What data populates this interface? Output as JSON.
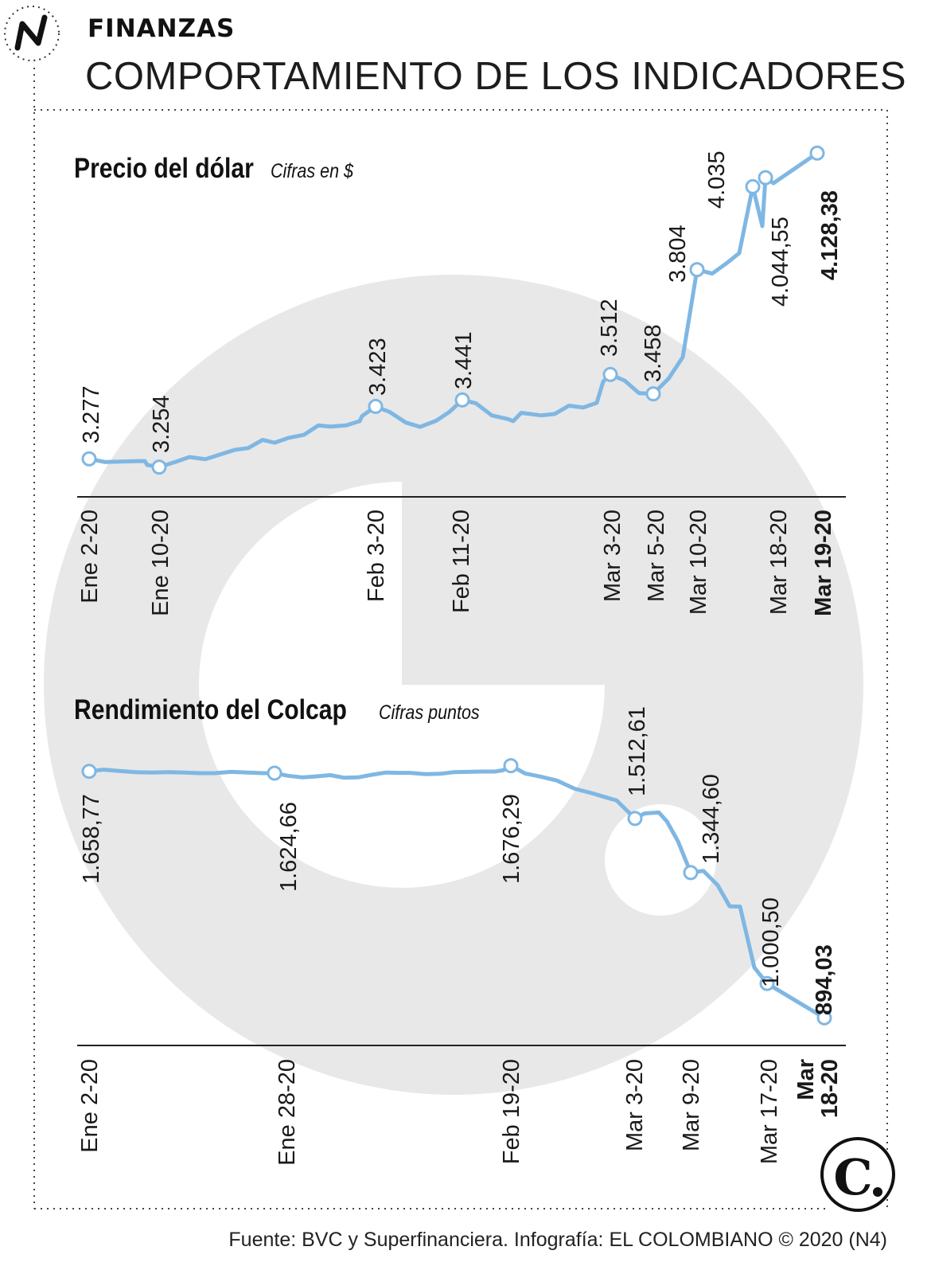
{
  "header": {
    "section": "FINANZAS",
    "title": "COMPORTAMIENTO DE LOS INDICADORES",
    "logo_icon": "n-arrow-logo-icon"
  },
  "footer": {
    "source": "Fuente: BVC y Superfinanciera. Infografía: EL COLOMBIANO © 2020 (N4)",
    "brand_icon": "el-colombiano-c-logo-icon"
  },
  "colors": {
    "line": "#7fb7e3",
    "marker_fill": "#ffffff",
    "watermark": "#e8e8e8",
    "text": "#1a1a1a"
  },
  "chart_data": [
    {
      "type": "line",
      "title": "Precio del dólar",
      "subtitle": "Cifras en $",
      "ylim": [
        3200,
        4200
      ],
      "x_ticks": [
        {
          "label": "Ene 2-20",
          "day": 2,
          "bold": false
        },
        {
          "label": "Ene 10-20",
          "day": 10,
          "bold": false
        },
        {
          "label": "Feb 3-20",
          "day": 34,
          "bold": false
        },
        {
          "label": "Feb 11-20",
          "day": 42,
          "bold": false
        },
        {
          "label": "Mar 3-20",
          "day": 63,
          "bold": false
        },
        {
          "label": "Mar 5-20",
          "day": 65,
          "bold": false
        },
        {
          "label": "Mar 10-20",
          "day": 70,
          "bold": false
        },
        {
          "label": "Mar 18-20",
          "day": 78,
          "bold": false
        },
        {
          "label": "Mar 19-20",
          "day": 79,
          "bold": true
        }
      ],
      "series": [
        {
          "values": [
            3277,
            3268,
            3270,
            3271,
            3260,
            3254,
            3268,
            3282,
            3276,
            3290,
            3302,
            3307,
            3330,
            3322,
            3335,
            3344,
            3370,
            3367,
            3370,
            3382,
            3396,
            3423,
            3407,
            3378,
            3366,
            3383,
            3408,
            3441,
            3432,
            3398,
            3388,
            3382,
            3405,
            3398,
            3402,
            3425,
            3420,
            3433,
            3492,
            3512,
            3495,
            3460,
            3458,
            3500,
            3560,
            3804,
            3793,
            3820,
            3850,
            4035,
            3925,
            4060,
            4044.55,
            4128.38
          ]
        }
      ],
      "annotations": [
        {
          "value": "3.277",
          "bold": false
        },
        {
          "value": "3.254",
          "bold": false
        },
        {
          "value": "3.423",
          "bold": false
        },
        {
          "value": "3.441",
          "bold": false
        },
        {
          "value": "3.512",
          "bold": false
        },
        {
          "value": "3.458",
          "bold": false
        },
        {
          "value": "3.804",
          "bold": false
        },
        {
          "value": "4.035",
          "bold": false
        },
        {
          "value": "4.044,55",
          "bold": false
        },
        {
          "value": "4.128,38",
          "bold": true
        }
      ]
    },
    {
      "type": "line",
      "title": "Rendimiento del Colcap",
      "subtitle": "Cifras puntos",
      "ylim": [
        880,
        1700
      ],
      "x_ticks": [
        {
          "label": "Ene 2-20",
          "bold": false
        },
        {
          "label": "Ene 28-20",
          "bold": false
        },
        {
          "label": "Feb 19-20",
          "bold": false
        },
        {
          "label": "Mar 3-20",
          "bold": false
        },
        {
          "label": "Mar 9-20",
          "bold": false
        },
        {
          "label": "Mar 17-20",
          "bold": false
        },
        {
          "label": "Mar 18-20",
          "bold": true
        }
      ],
      "series": [
        {
          "values": [
            1658.77,
            1664,
            1660,
            1656,
            1655,
            1656,
            1655,
            1653,
            1653,
            1657,
            1655,
            1653,
            1653,
            1645,
            1640,
            1643,
            1647,
            1639,
            1640,
            1648,
            1655,
            1654,
            1654,
            1650,
            1651,
            1656,
            1657,
            1658,
            1658,
            1662,
            1676.29,
            1652,
            1643,
            1630,
            1605,
            1590,
            1568,
            1512.61,
            1528,
            1531,
            1504,
            1442,
            1344.6,
            1350,
            1305,
            1240,
            1239,
            1050,
            1000.5,
            894.03
          ]
        }
      ],
      "annotations": [
        {
          "value": "1.658,77",
          "bold": false
        },
        {
          "value": "1.624,66",
          "bold": false
        },
        {
          "value": "1.676,29",
          "bold": false
        },
        {
          "value": "1.512,61",
          "bold": false
        },
        {
          "value": "1.344,60",
          "bold": false
        },
        {
          "value": "1.000,50",
          "bold": false
        },
        {
          "value": "894,03",
          "bold": true
        }
      ]
    }
  ]
}
